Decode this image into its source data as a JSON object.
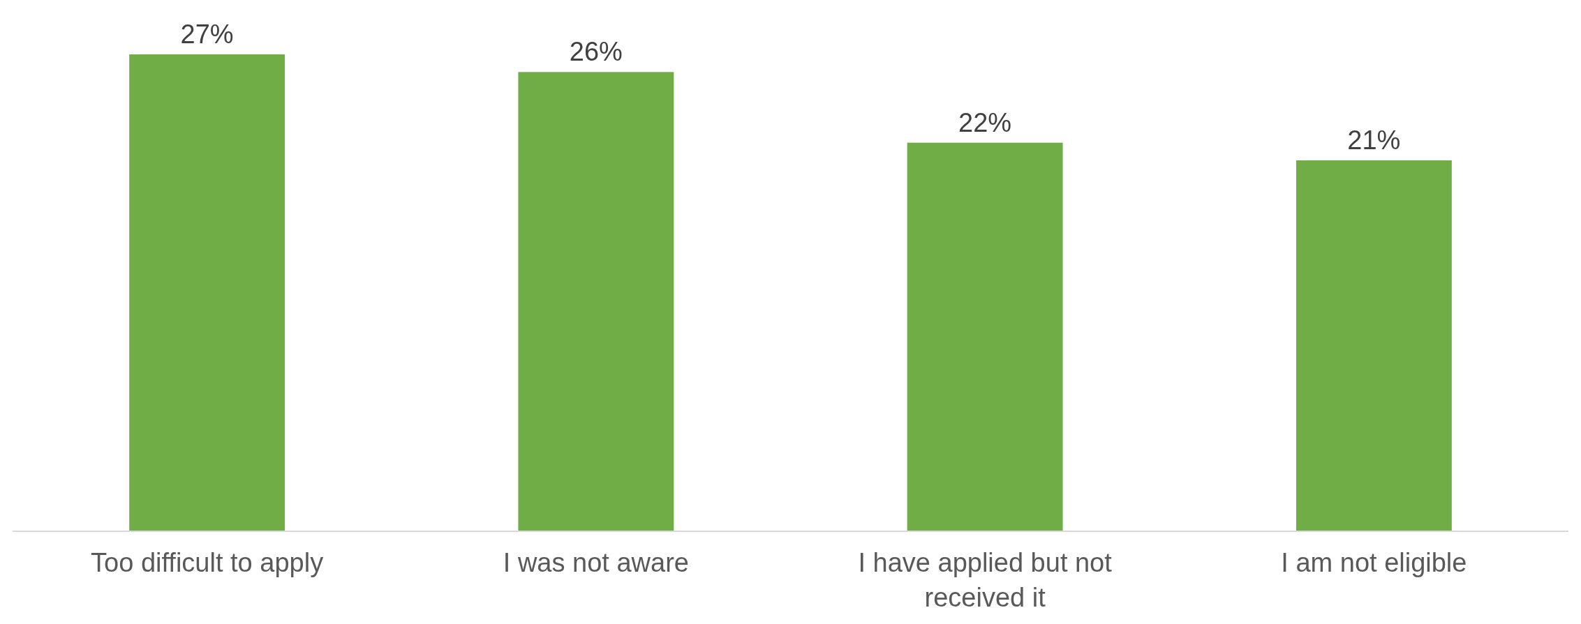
{
  "chart_data": {
    "type": "bar",
    "categories": [
      "Too difficult to apply",
      "I was not aware",
      "I have applied but not received it",
      "I am not eligible"
    ],
    "values": [
      27,
      26,
      22,
      21
    ],
    "value_labels": [
      "27%",
      "26%",
      "22%",
      "21%"
    ],
    "color": "#70ad47"
  }
}
